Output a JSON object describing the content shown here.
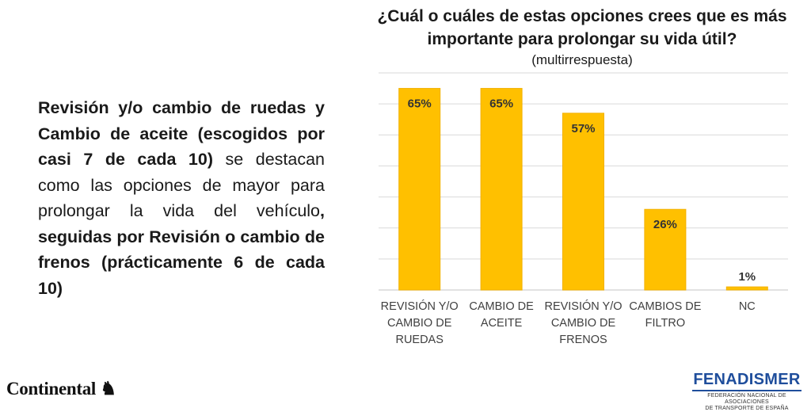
{
  "summary": {
    "bold_1": "Revisión y/o cambio de ruedas y Cambio de aceite (escogidos por casi 7 de cada 10)",
    "normal_1": " se destacan como las opciones de mayor para prolongar la vida del vehículo",
    "bold_2": ", seguidas por Revisión o cambio de frenos (prácticamente 6 de cada 10)"
  },
  "chart_data": {
    "type": "bar",
    "title": "¿Cuál o cuáles de estas opciones crees que es más importante para prolongar su vida útil?",
    "subtitle": "(multirrespuesta)",
    "categories": [
      [
        "REVISIÓN Y/O",
        "CAMBIO DE",
        "RUEDAS"
      ],
      [
        "CAMBIO DE",
        "ACEITE"
      ],
      [
        "REVISIÓN Y/O",
        "CAMBIO DE",
        "FRENOS"
      ],
      [
        "CAMBIOS DE",
        "FILTRO"
      ],
      [
        "NC"
      ]
    ],
    "values": [
      65,
      65,
      57,
      26,
      1
    ],
    "data_labels": [
      "65%",
      "65%",
      "57%",
      "26%",
      "1%"
    ],
    "ylim": [
      0,
      70
    ],
    "grid": true,
    "legend": "none",
    "bar_color": "#ffc000",
    "bar_edge_color": "#f2b100",
    "grid_color": "#d9d9d9"
  },
  "logos": {
    "continental": "Continental",
    "fenadismer_name": "FENADISMER",
    "fenadismer_sub_1": "FEDERACIÓN NACIONAL DE ASOCIACIONES",
    "fenadismer_sub_2": "DE TRANSPORTE DE ESPAÑA"
  }
}
